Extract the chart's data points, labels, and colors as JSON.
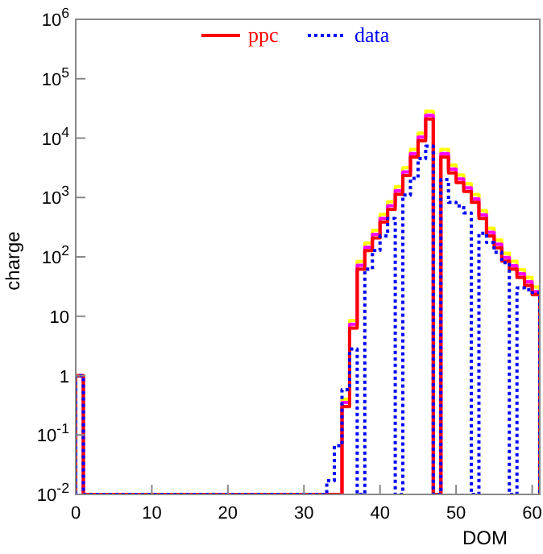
{
  "chart_data": {
    "type": "histogram",
    "xlabel": "DOM",
    "ylabel": "charge",
    "log": "y",
    "legend": "top",
    "grid": false,
    "bins": [
      0,
      1,
      2,
      3,
      4,
      5,
      6,
      7,
      8,
      9,
      10,
      11,
      12,
      13,
      14,
      15,
      16,
      17,
      18,
      19,
      20,
      21,
      22,
      23,
      24,
      25,
      26,
      27,
      28,
      29,
      30,
      31,
      32,
      33,
      34,
      35,
      36,
      37,
      38,
      39,
      40,
      41,
      42,
      43,
      44,
      45,
      46,
      47,
      48,
      49,
      50,
      51,
      52,
      53,
      54,
      55,
      56,
      57,
      58,
      59,
      60,
      61
    ],
    "xlim": [
      0,
      61
    ],
    "xticks": [
      0,
      10,
      20,
      30,
      40,
      50,
      60
    ],
    "ylim": [
      0.01,
      1000000
    ],
    "yticks": [
      {
        "value": 0.01,
        "label": "10$^{-2}$"
      },
      {
        "value": 0.1,
        "label": "10$^{-1}$"
      },
      1,
      10,
      {
        "value": 100,
        "label": "10$^{2}$"
      },
      {
        "value": 1000,
        "label": "10$^{3}$"
      },
      {
        "value": 10000,
        "label": "10$^{4}$"
      },
      {
        "value": 100000,
        "label": "10$^{5}$"
      },
      {
        "value": 1000000,
        "label": "10$^{6}$"
      }
    ],
    "series": [
      {
        "color": "#ffff00",
        "line_style": "solid",
        "values": [
          1,
          null,
          null,
          null,
          null,
          null,
          null,
          null,
          null,
          null,
          null,
          null,
          null,
          null,
          null,
          null,
          null,
          null,
          null,
          null,
          null,
          null,
          null,
          null,
          null,
          null,
          null,
          null,
          null,
          null,
          null,
          null,
          null,
          null,
          null,
          0.4,
          8.5,
          84,
          171,
          281,
          521,
          851,
          1530,
          3170,
          6480,
          12200,
          28400,
          null,
          6480,
          3510,
          2400,
          1700,
          1120,
          600,
          304,
          192,
          115,
          84,
          61,
          45,
          31
        ]
      },
      {
        "color": "#ff00ff",
        "line_style": "solid",
        "values": [
          1,
          null,
          null,
          null,
          null,
          null,
          null,
          null,
          null,
          null,
          null,
          null,
          null,
          null,
          null,
          null,
          null,
          null,
          null,
          null,
          null,
          null,
          null,
          null,
          null,
          null,
          null,
          null,
          null,
          null,
          null,
          null,
          null,
          null,
          null,
          0.35,
          7.3,
          72,
          146,
          240,
          444,
          725,
          1300,
          2700,
          5500,
          10400,
          24200,
          null,
          5500,
          3000,
          2050,
          1450,
          950,
          510,
          260,
          163,
          98,
          71,
          52,
          38,
          26
        ]
      },
      {
        "name": "ppc",
        "color": "#ff0000",
        "line_style": "solid",
        "values": [
          1,
          null,
          null,
          null,
          null,
          null,
          null,
          null,
          null,
          null,
          null,
          null,
          null,
          null,
          null,
          null,
          null,
          null,
          null,
          null,
          null,
          null,
          null,
          null,
          null,
          null,
          null,
          null,
          null,
          null,
          null,
          null,
          null,
          null,
          null,
          0.3,
          6.3,
          62,
          127,
          208,
          386,
          630,
          1130,
          2350,
          4800,
          9000,
          21000,
          null,
          4800,
          2600,
          1780,
          1260,
          830,
          445,
          225,
          142,
          85,
          62,
          45,
          33,
          23
        ]
      },
      {
        "name": "data",
        "color": "#0000ff",
        "line_style": "dotted",
        "values": [
          1,
          null,
          null,
          null,
          null,
          null,
          null,
          null,
          null,
          null,
          null,
          null,
          null,
          null,
          null,
          null,
          null,
          null,
          null,
          null,
          null,
          null,
          null,
          null,
          null,
          null,
          null,
          null,
          null,
          null,
          null,
          null,
          null,
          0.017,
          0.066,
          0.58,
          2.8,
          null,
          62,
          128,
          225,
          445,
          null,
          1100,
          2100,
          4500,
          7300,
          null,
          2000,
          830,
          720,
          550,
          null,
          250,
          175,
          120,
          80,
          null,
          30,
          28,
          25
        ]
      }
    ]
  }
}
